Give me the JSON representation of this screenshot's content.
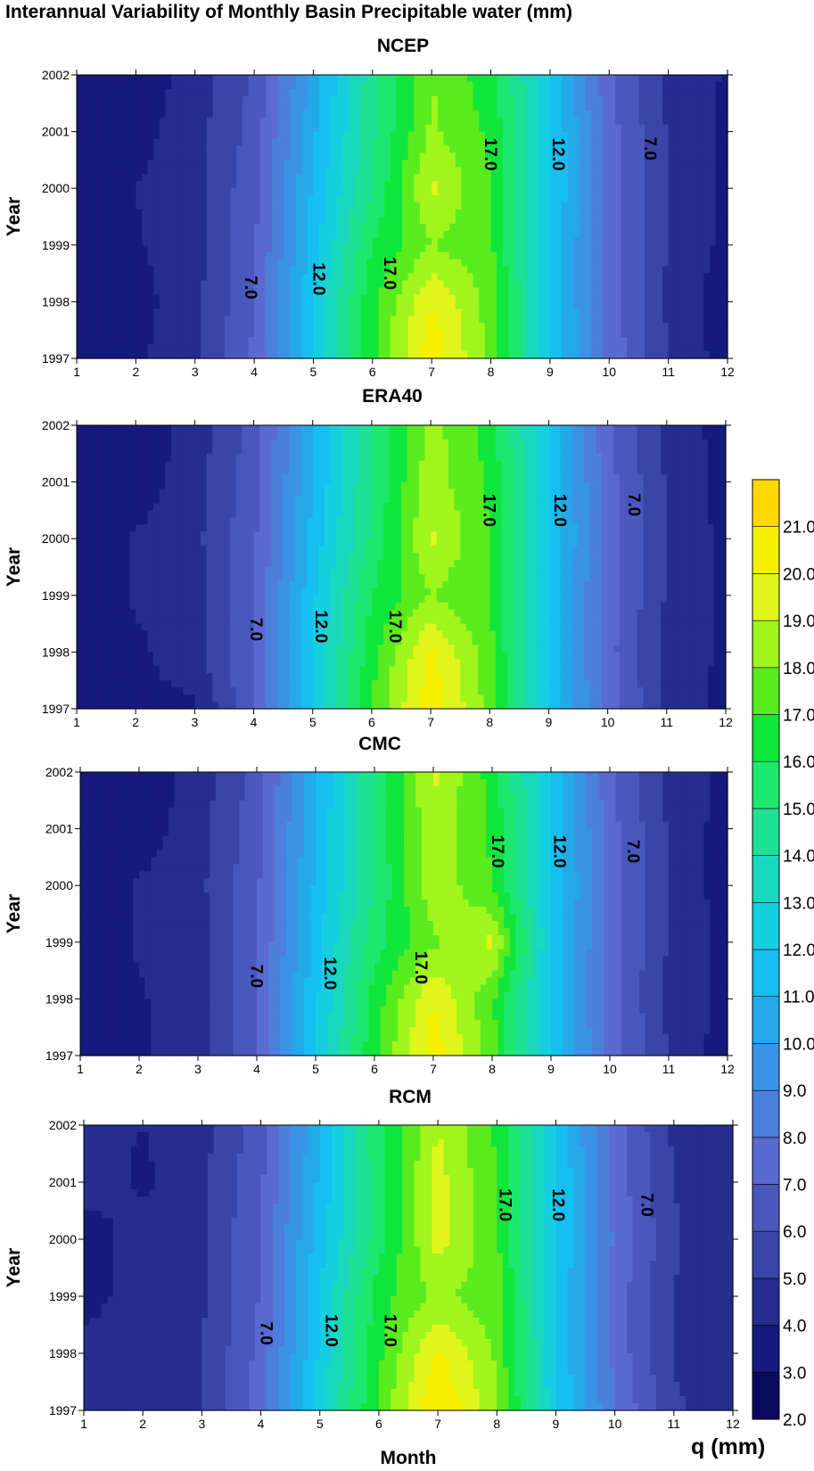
{
  "figure": {
    "title": "Interannual Variability of Monthly Basin Precipitable water (mm)",
    "xlabel": "Month",
    "colorbar_label": "q (mm)"
  },
  "colors": {
    "levels": [
      2,
      3,
      4,
      5,
      6,
      7,
      8,
      9,
      10,
      11,
      12,
      13,
      14,
      15,
      16,
      17,
      18,
      19,
      20,
      21,
      22
    ],
    "palette": [
      "#0a0a5e",
      "#151a7c",
      "#252d8f",
      "#3a45a8",
      "#4a58bd",
      "#5b6ad0",
      "#4b7fdc",
      "#3b93e6",
      "#24a9ea",
      "#15bff0",
      "#15cfe0",
      "#1ad8bd",
      "#1ee196",
      "#1de86e",
      "#10e53c",
      "#5aeb1f",
      "#a0f51c",
      "#e0f51c",
      "#f5f000",
      "#ffd800",
      "#ffc000"
    ]
  },
  "chart_data": [
    {
      "type": "heatmap",
      "title": "NCEP",
      "xlabel": "",
      "ylabel": "Year",
      "x": [
        1,
        2,
        3,
        4,
        5,
        6,
        7,
        8,
        9,
        10,
        11,
        12
      ],
      "y": [
        1997,
        1998,
        1999,
        2000,
        2001,
        2002
      ],
      "xlim": [
        1,
        12
      ],
      "ylim": [
        1997,
        2002
      ],
      "xticks": [
        "1",
        "2",
        "3",
        "4",
        "5",
        "6",
        "7",
        "8",
        "9",
        "10",
        "11",
        "12"
      ],
      "yticks": [
        "1997",
        "1998",
        "1999",
        "2000",
        "2001",
        "2002"
      ],
      "z": [
        [
          3.3,
          3.8,
          4.8,
          7.2,
          12.2,
          16.8,
          20.8,
          17.6,
          12.0,
          7.8,
          5.0,
          3.5
        ],
        [
          3.4,
          3.6,
          4.7,
          7.0,
          12.0,
          16.8,
          20.0,
          17.6,
          12.0,
          7.5,
          4.8,
          3.4
        ],
        [
          3.3,
          3.9,
          4.6,
          6.8,
          11.5,
          16.0,
          18.0,
          17.2,
          12.0,
          7.5,
          4.9,
          3.7
        ],
        [
          3.2,
          4.0,
          4.7,
          6.7,
          11.2,
          15.0,
          19.2,
          17.0,
          12.2,
          7.6,
          5.0,
          3.8
        ],
        [
          3.8,
          3.6,
          4.6,
          6.4,
          10.8,
          14.8,
          18.2,
          16.8,
          12.2,
          7.4,
          4.9,
          3.7
        ],
        [
          3.6,
          3.4,
          4.4,
          6.2,
          10.4,
          14.6,
          18.0,
          16.4,
          12.0,
          7.2,
          4.7,
          3.9
        ]
      ],
      "contour_labels": [
        {
          "text": "7.0",
          "x": 3.85,
          "y": 1998.25
        },
        {
          "text": "12.0",
          "x": 5.0,
          "y": 1998.4
        },
        {
          "text": "17.0",
          "x": 6.2,
          "y": 1998.5
        },
        {
          "text": "17.0",
          "x": 7.9,
          "y": 2000.6
        },
        {
          "text": "12.0",
          "x": 9.05,
          "y": 2000.6
        },
        {
          "text": "7.0",
          "x": 10.6,
          "y": 2000.7
        }
      ]
    },
    {
      "type": "heatmap",
      "title": "ERA40",
      "xlabel": "",
      "ylabel": "Year",
      "x": [
        1,
        2,
        3,
        4,
        5,
        6,
        7,
        8,
        9,
        10,
        11,
        12
      ],
      "y": [
        1997,
        1998,
        1999,
        2000,
        2001,
        2002
      ],
      "xlim": [
        1,
        12
      ],
      "ylim": [
        1997,
        2002
      ],
      "xticks": [
        "1",
        "2",
        "3",
        "4",
        "5",
        "6",
        "7",
        "8",
        "9",
        "10",
        "11",
        "12"
      ],
      "yticks": [
        "1997",
        "1998",
        "1999",
        "2000",
        "2001",
        "2002"
      ],
      "z": [
        [
          3.6,
          3.8,
          3.8,
          7.0,
          12.2,
          17.0,
          20.8,
          17.6,
          11.8,
          7.6,
          4.8,
          3.6
        ],
        [
          3.4,
          3.8,
          4.6,
          7.0,
          12.0,
          16.6,
          20.2,
          17.4,
          11.8,
          7.4,
          4.7,
          3.8
        ],
        [
          3.3,
          4.1,
          4.6,
          6.8,
          11.8,
          16.0,
          18.0,
          17.0,
          11.8,
          7.4,
          4.9,
          3.8
        ],
        [
          3.2,
          4.1,
          4.7,
          6.8,
          11.4,
          15.2,
          19.2,
          17.0,
          12.0,
          7.6,
          5.0,
          3.7
        ],
        [
          3.8,
          3.4,
          4.6,
          6.6,
          11.0,
          15.0,
          18.6,
          16.8,
          12.0,
          7.4,
          4.9,
          3.6
        ],
        [
          3.7,
          3.3,
          4.4,
          6.4,
          10.8,
          15.0,
          18.4,
          16.6,
          11.8,
          7.2,
          4.7,
          3.6
        ]
      ],
      "contour_labels": [
        {
          "text": "7.0",
          "x": 3.95,
          "y": 1998.4
        },
        {
          "text": "12.0",
          "x": 5.05,
          "y": 1998.45
        },
        {
          "text": "17.0",
          "x": 6.3,
          "y": 1998.45
        },
        {
          "text": "17.0",
          "x": 7.9,
          "y": 2000.5
        },
        {
          "text": "12.0",
          "x": 9.1,
          "y": 2000.5
        },
        {
          "text": "7.0",
          "x": 10.35,
          "y": 2000.6
        }
      ]
    },
    {
      "type": "heatmap",
      "title": "CMC",
      "xlabel": "",
      "ylabel": "Year",
      "x": [
        1,
        2,
        3,
        4,
        5,
        6,
        7,
        8,
        9,
        10,
        11,
        12
      ],
      "y": [
        1997,
        1998,
        1999,
        2000,
        2001,
        2002
      ],
      "xlim": [
        1,
        12
      ],
      "ylim": [
        1997,
        2002
      ],
      "xticks": [
        "1",
        "2",
        "3",
        "4",
        "5",
        "6",
        "7",
        "8",
        "9",
        "10",
        "11",
        "12"
      ],
      "yticks": [
        "1997",
        "1998",
        "1999",
        "2000",
        "2001",
        "2002"
      ],
      "z": [
        [
          3.3,
          3.8,
          4.6,
          7.0,
          12.0,
          16.8,
          20.6,
          17.4,
          11.8,
          7.6,
          4.9,
          3.5
        ],
        [
          3.3,
          3.9,
          4.5,
          6.9,
          11.8,
          16.4,
          20.0,
          17.2,
          11.8,
          7.4,
          4.8,
          3.6
        ],
        [
          3.3,
          4.1,
          4.6,
          6.8,
          11.6,
          15.6,
          17.8,
          19.2,
          12.0,
          7.4,
          4.9,
          3.7
        ],
        [
          3.2,
          4.1,
          4.7,
          6.8,
          11.2,
          15.0,
          18.8,
          17.0,
          12.0,
          7.6,
          5.0,
          3.4
        ],
        [
          3.7,
          3.4,
          4.6,
          6.6,
          11.0,
          15.2,
          18.8,
          16.8,
          12.0,
          7.4,
          4.9,
          3.5
        ],
        [
          3.6,
          3.3,
          4.4,
          6.4,
          10.8,
          15.2,
          19.2,
          16.6,
          11.8,
          7.2,
          4.7,
          3.7
        ]
      ],
      "contour_labels": [
        {
          "text": "7.0",
          "x": 3.9,
          "y": 1998.4
        },
        {
          "text": "12.0",
          "x": 5.15,
          "y": 1998.45
        },
        {
          "text": "17.0",
          "x": 6.7,
          "y": 1998.55
        },
        {
          "text": "17.0",
          "x": 8.0,
          "y": 2000.6
        },
        {
          "text": "12.0",
          "x": 9.05,
          "y": 2000.6
        },
        {
          "text": "7.0",
          "x": 10.3,
          "y": 2000.6
        }
      ]
    },
    {
      "type": "heatmap",
      "title": "RCM",
      "xlabel": "Month",
      "ylabel": "Year",
      "x": [
        1,
        2,
        3,
        4,
        5,
        6,
        7,
        8,
        9,
        10,
        11,
        12
      ],
      "y": [
        1997,
        1998,
        1999,
        2000,
        2001,
        2002
      ],
      "xlim": [
        1,
        12
      ],
      "ylim": [
        1997,
        2002
      ],
      "xticks": [
        "1",
        "2",
        "3",
        "4",
        "5",
        "6",
        "7",
        "8",
        "9",
        "10",
        "11",
        "12"
      ],
      "yticks": [
        "1997",
        "1998",
        "1999",
        "2000",
        "2001",
        "2002"
      ],
      "z": [
        [
          4.6,
          4.9,
          5.0,
          7.6,
          12.6,
          17.2,
          21.2,
          18.2,
          12.2,
          8.0,
          5.2,
          4.4
        ],
        [
          4.3,
          4.6,
          5.0,
          7.3,
          12.2,
          16.8,
          20.2,
          17.8,
          12.0,
          7.7,
          4.9,
          4.1
        ],
        [
          3.6,
          4.5,
          4.8,
          7.1,
          12.0,
          16.6,
          18.2,
          17.4,
          12.0,
          7.6,
          5.0,
          4.3
        ],
        [
          3.3,
          4.6,
          4.9,
          7.0,
          11.6,
          15.6,
          19.4,
          17.2,
          12.2,
          7.8,
          5.1,
          4.3
        ],
        [
          4.6,
          3.8,
          4.8,
          6.8,
          11.2,
          15.6,
          19.4,
          17.0,
          12.2,
          7.6,
          5.0,
          4.1
        ],
        [
          4.3,
          4.0,
          4.6,
          6.6,
          11.0,
          15.8,
          19.0,
          16.8,
          12.0,
          7.4,
          4.8,
          4.3
        ]
      ],
      "contour_labels": [
        {
          "text": "7.0",
          "x": 4.0,
          "y": 1998.35
        },
        {
          "text": "12.0",
          "x": 5.1,
          "y": 1998.4
        },
        {
          "text": "17.0",
          "x": 6.1,
          "y": 1998.4
        },
        {
          "text": "17.0",
          "x": 8.05,
          "y": 2000.6
        },
        {
          "text": "12.0",
          "x": 8.95,
          "y": 2000.6
        },
        {
          "text": "7.0",
          "x": 10.45,
          "y": 2000.6
        }
      ]
    },
    {
      "type": "heatmap",
      "title": "",
      "xlabel": "",
      "ylabel": "",
      "colorbar_ticks": [
        "2.0",
        "3.0",
        "4.0",
        "5.0",
        "6.0",
        "7.0",
        "8.0",
        "9.0",
        "10.0",
        "11.0",
        "12.0",
        "13.0",
        "14.0",
        "15.0",
        "16.0",
        "17.0",
        "18.0",
        "19.0",
        "20.0",
        "21.0"
      ],
      "ylim": [
        2,
        22
      ]
    }
  ]
}
